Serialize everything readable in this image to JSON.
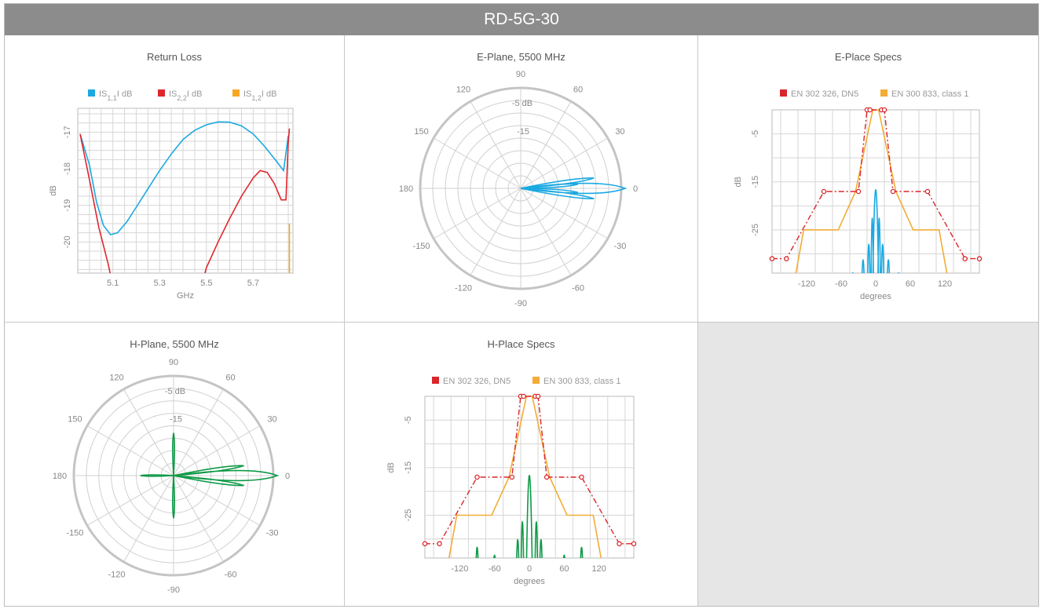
{
  "page_title": "RD-5G-30",
  "colors": {
    "header_bg": "#8c8c8c",
    "blue": "#1aa9e1",
    "red": "#e1262d",
    "orange": "#f6a623",
    "green": "#0f9a47",
    "spec_red": "#d9262b",
    "spec_orange": "#f3ac35"
  },
  "chart_data": [
    {
      "type": "line",
      "title": "Return Loss",
      "xlabel": "GHz",
      "ylabel": "dB",
      "xticks": [
        "5.1",
        "5.3",
        "5.5",
        "5.7"
      ],
      "yticks": [
        "-17",
        "-18",
        "-19",
        "-20"
      ],
      "xlim": [
        4.95,
        5.87
      ],
      "ylim": [
        -20.85,
        -16.35
      ],
      "legend": "top",
      "grid": true,
      "series": [
        {
          "name_parts": [
            "IS",
            "1,1",
            "I dB"
          ],
          "color": "#1aa9e1",
          "x": [
            4.96,
            5.0,
            5.03,
            5.06,
            5.09,
            5.12,
            5.16,
            5.2,
            5.25,
            5.3,
            5.35,
            5.4,
            5.45,
            5.5,
            5.55,
            5.6,
            5.65,
            5.7,
            5.75,
            5.8,
            5.83,
            5.85
          ],
          "y": [
            -17.05,
            -17.9,
            -18.9,
            -19.55,
            -19.8,
            -19.75,
            -19.45,
            -19.05,
            -18.55,
            -18.05,
            -17.6,
            -17.2,
            -16.95,
            -16.8,
            -16.72,
            -16.73,
            -16.83,
            -17.05,
            -17.4,
            -17.8,
            -18.05,
            -17.1
          ]
        },
        {
          "name_parts": [
            "IS",
            "2,2",
            "I dB"
          ],
          "color": "#e1262d",
          "x": [
            4.96,
            5.0,
            5.04,
            5.08,
            5.1,
            5.48,
            5.5,
            5.55,
            5.6,
            5.65,
            5.7,
            5.73,
            5.76,
            5.79,
            5.82,
            5.84,
            5.85,
            5.855
          ],
          "y": [
            -17.05,
            -18.3,
            -19.6,
            -20.6,
            -21.2,
            -21.2,
            -20.7,
            -20.0,
            -19.35,
            -18.75,
            -18.25,
            -18.05,
            -18.1,
            -18.4,
            -18.85,
            -18.85,
            -17.3,
            -16.9
          ]
        },
        {
          "name_parts": [
            "IS",
            "1,2",
            "I dB"
          ],
          "color": "#f6a623",
          "x": [
            5.855,
            5.855
          ],
          "y": [
            -20.85,
            -19.5
          ]
        }
      ]
    },
    {
      "type": "polar",
      "title": "E-Plane, 5500 MHz",
      "angle_labels": [
        "90",
        "60",
        "30",
        "0",
        "-30",
        "-60",
        "-90",
        "-120",
        "-150",
        "180",
        "150",
        "120"
      ],
      "ring_labels": [
        "-5 dB",
        "-15"
      ],
      "color": "#1aa9e1",
      "lobe_angles_deg": [
        0,
        8,
        -8,
        4,
        -4
      ],
      "lobe_gains_db": [
        0,
        -9,
        -9,
        -16,
        -16
      ]
    },
    {
      "type": "line",
      "title": "E-Place Specs",
      "xlabel": "degrees",
      "ylabel": "dB",
      "xticks": [
        "-120",
        "-60",
        "0",
        "60",
        "120"
      ],
      "yticks": [
        "-5",
        "-15",
        "-25"
      ],
      "xlim": [
        -180,
        180
      ],
      "ylim": [
        -34,
        0
      ],
      "legend": "top",
      "grid": true,
      "series": [
        {
          "name": "EN 302 326, DN5",
          "color": "#d9262b",
          "style": "dash-dot-markers",
          "x": [
            -180,
            -155,
            -90,
            -30,
            -15,
            -10,
            10,
            15,
            30,
            90,
            155,
            180
          ],
          "y": [
            -31,
            -31,
            -17,
            -17,
            0,
            0,
            0,
            0,
            -17,
            -17,
            -31,
            -31
          ]
        },
        {
          "name": "EN 300 833, class 1",
          "color": "#f3ac35",
          "style": "solid",
          "x": [
            -140,
            -125,
            -110,
            -65,
            -35,
            -5,
            5,
            35,
            65,
            110,
            125,
            140
          ],
          "y": [
            -35,
            -25,
            -25,
            -25,
            -17,
            0,
            0,
            -17,
            -25,
            -25,
            -35,
            -35
          ]
        },
        {
          "name": "",
          "color": "#1aa9e1",
          "style": "pattern",
          "peaks_x": [
            0,
            6,
            -6,
            12,
            -12,
            22,
            -22,
            40,
            -40,
            48,
            -48
          ],
          "peaks_y": [
            0,
            -11,
            -11,
            -21,
            -21,
            -27,
            -27,
            -32,
            -32,
            -33,
            -33
          ]
        }
      ]
    },
    {
      "type": "polar",
      "title": "H-Plane, 5500 MHz",
      "angle_labels": [
        "90",
        "60",
        "30",
        "0",
        "-30",
        "-60",
        "-90",
        "-120",
        "-150",
        "180",
        "150",
        "120"
      ],
      "ring_labels": [
        "-5 dB",
        "-15"
      ],
      "color": "#0f9a47",
      "lobe_angles_deg": [
        0,
        8,
        -8,
        90,
        -90,
        180
      ],
      "lobe_gains_db": [
        0,
        -10,
        -10,
        -22,
        -22,
        -26
      ]
    },
    {
      "type": "line",
      "title": "H-Place Specs",
      "xlabel": "degrees",
      "ylabel": "dB",
      "xticks": [
        "-120",
        "-60",
        "0",
        "60",
        "120"
      ],
      "yticks": [
        "-5",
        "-15",
        "-25"
      ],
      "xlim": [
        -180,
        180
      ],
      "ylim": [
        -34,
        0
      ],
      "legend": "top",
      "grid": true,
      "series": [
        {
          "name": "EN 302 326, DN5",
          "color": "#d9262b",
          "style": "dash-dot-markers",
          "x": [
            -180,
            -155,
            -90,
            -30,
            -15,
            -10,
            10,
            15,
            30,
            90,
            155,
            180
          ],
          "y": [
            -31,
            -31,
            -17,
            -17,
            0,
            0,
            0,
            0,
            -17,
            -17,
            -31,
            -31
          ]
        },
        {
          "name": "EN 300 833, class 1",
          "color": "#f3ac35",
          "style": "solid",
          "x": [
            -140,
            -125,
            -110,
            -65,
            -35,
            -5,
            5,
            35,
            65,
            110,
            125,
            140
          ],
          "y": [
            -35,
            -25,
            -25,
            -25,
            -17,
            0,
            0,
            -17,
            -25,
            -25,
            -35,
            -35
          ]
        },
        {
          "name": "",
          "color": "#0f9a47",
          "style": "pattern",
          "peaks_x": [
            0,
            -12,
            12,
            -20,
            20,
            -90,
            90,
            -60,
            60
          ],
          "peaks_y": [
            0,
            -18,
            -18,
            -25,
            -25,
            -28,
            -28,
            -31,
            -31
          ]
        }
      ]
    }
  ]
}
